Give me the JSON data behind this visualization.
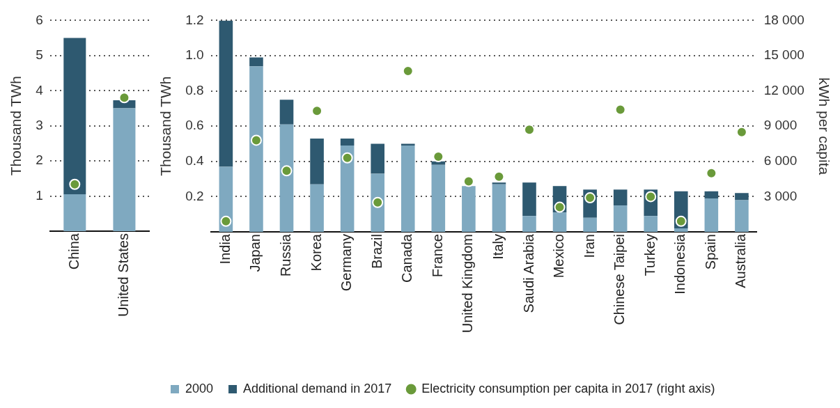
{
  "chart_data": [
    {
      "type": "bar",
      "ylabel": "Thousand TWh",
      "categories": [
        "China",
        "United States"
      ],
      "stacked": true,
      "ylim": [
        0,
        6
      ],
      "yticks": [
        1,
        2,
        3,
        4,
        5,
        6
      ],
      "y2lim": [
        0,
        18000
      ],
      "grid": "y",
      "marker": "circle",
      "series": [
        {
          "color": "#7fa9c0",
          "values": [
            1.05,
            3.5
          ]
        },
        {
          "color": "#2e5970",
          "values": [
            4.45,
            0.23
          ]
        },
        {
          "type": "scatter",
          "axis": "y2",
          "color": "#6a9a3a",
          "values": [
            4000,
            11400
          ]
        }
      ]
    },
    {
      "type": "bar",
      "ylabel": "Thousand TWh",
      "y2label": "kWh per capita",
      "categories": [
        "India",
        "Japan",
        "Russia",
        "Korea",
        "Germany",
        "Brazil",
        "Canada",
        "France",
        "United Kingdom",
        "Italy",
        "Saudi Arabia",
        "Mexico",
        "Iran",
        "Chinese Taipei",
        "Turkey",
        "Indonesia",
        "Spain",
        "Australia"
      ],
      "stacked": true,
      "ylim": [
        0,
        1.2
      ],
      "yticks": [
        0.2,
        0.4,
        0.6,
        0.8,
        {
          "value": 1,
          "label": "1.0"
        },
        1.2
      ],
      "y2lim": [
        0,
        18000
      ],
      "y2ticks": [
        {
          "value": 3000,
          "label": "3 000"
        },
        {
          "value": 6000,
          "label": "6 000"
        },
        {
          "value": 9000,
          "label": "9 000"
        },
        {
          "value": 12000,
          "label": "12 000"
        },
        {
          "value": 15000,
          "label": "15 000"
        },
        {
          "value": 18000,
          "label": "18 000"
        }
      ],
      "grid": "y",
      "legend": "bottom left",
      "marker": "circle",
      "series": [
        {
          "name": "2000",
          "color": "#7fa9c0",
          "values": [
            0.37,
            0.94,
            0.61,
            0.27,
            0.49,
            0.33,
            0.49,
            0.38,
            0.26,
            0.27,
            0.09,
            0.11,
            0.08,
            0.15,
            0.09,
            0.02,
            0.19,
            0.18
          ]
        },
        {
          "name": "Additional demand in 2017",
          "color": "#2e5970",
          "values": [
            0.83,
            0.05,
            0.14,
            0.26,
            0.04,
            0.17,
            0.01,
            0.02,
            0,
            0.01,
            0.19,
            0.15,
            0.16,
            0.09,
            0.15,
            0.21,
            0.04,
            0.04
          ]
        },
        {
          "type": "scatter",
          "axis": "y2",
          "name": "Electricity consumption per capita in 2017 (right axis)",
          "color": "#6a9a3a",
          "values": [
            900,
            7800,
            5200,
            10300,
            6300,
            2500,
            13700,
            6400,
            4300,
            4700,
            8700,
            2100,
            2900,
            10400,
            3000,
            900,
            5000,
            8500
          ]
        }
      ]
    }
  ]
}
